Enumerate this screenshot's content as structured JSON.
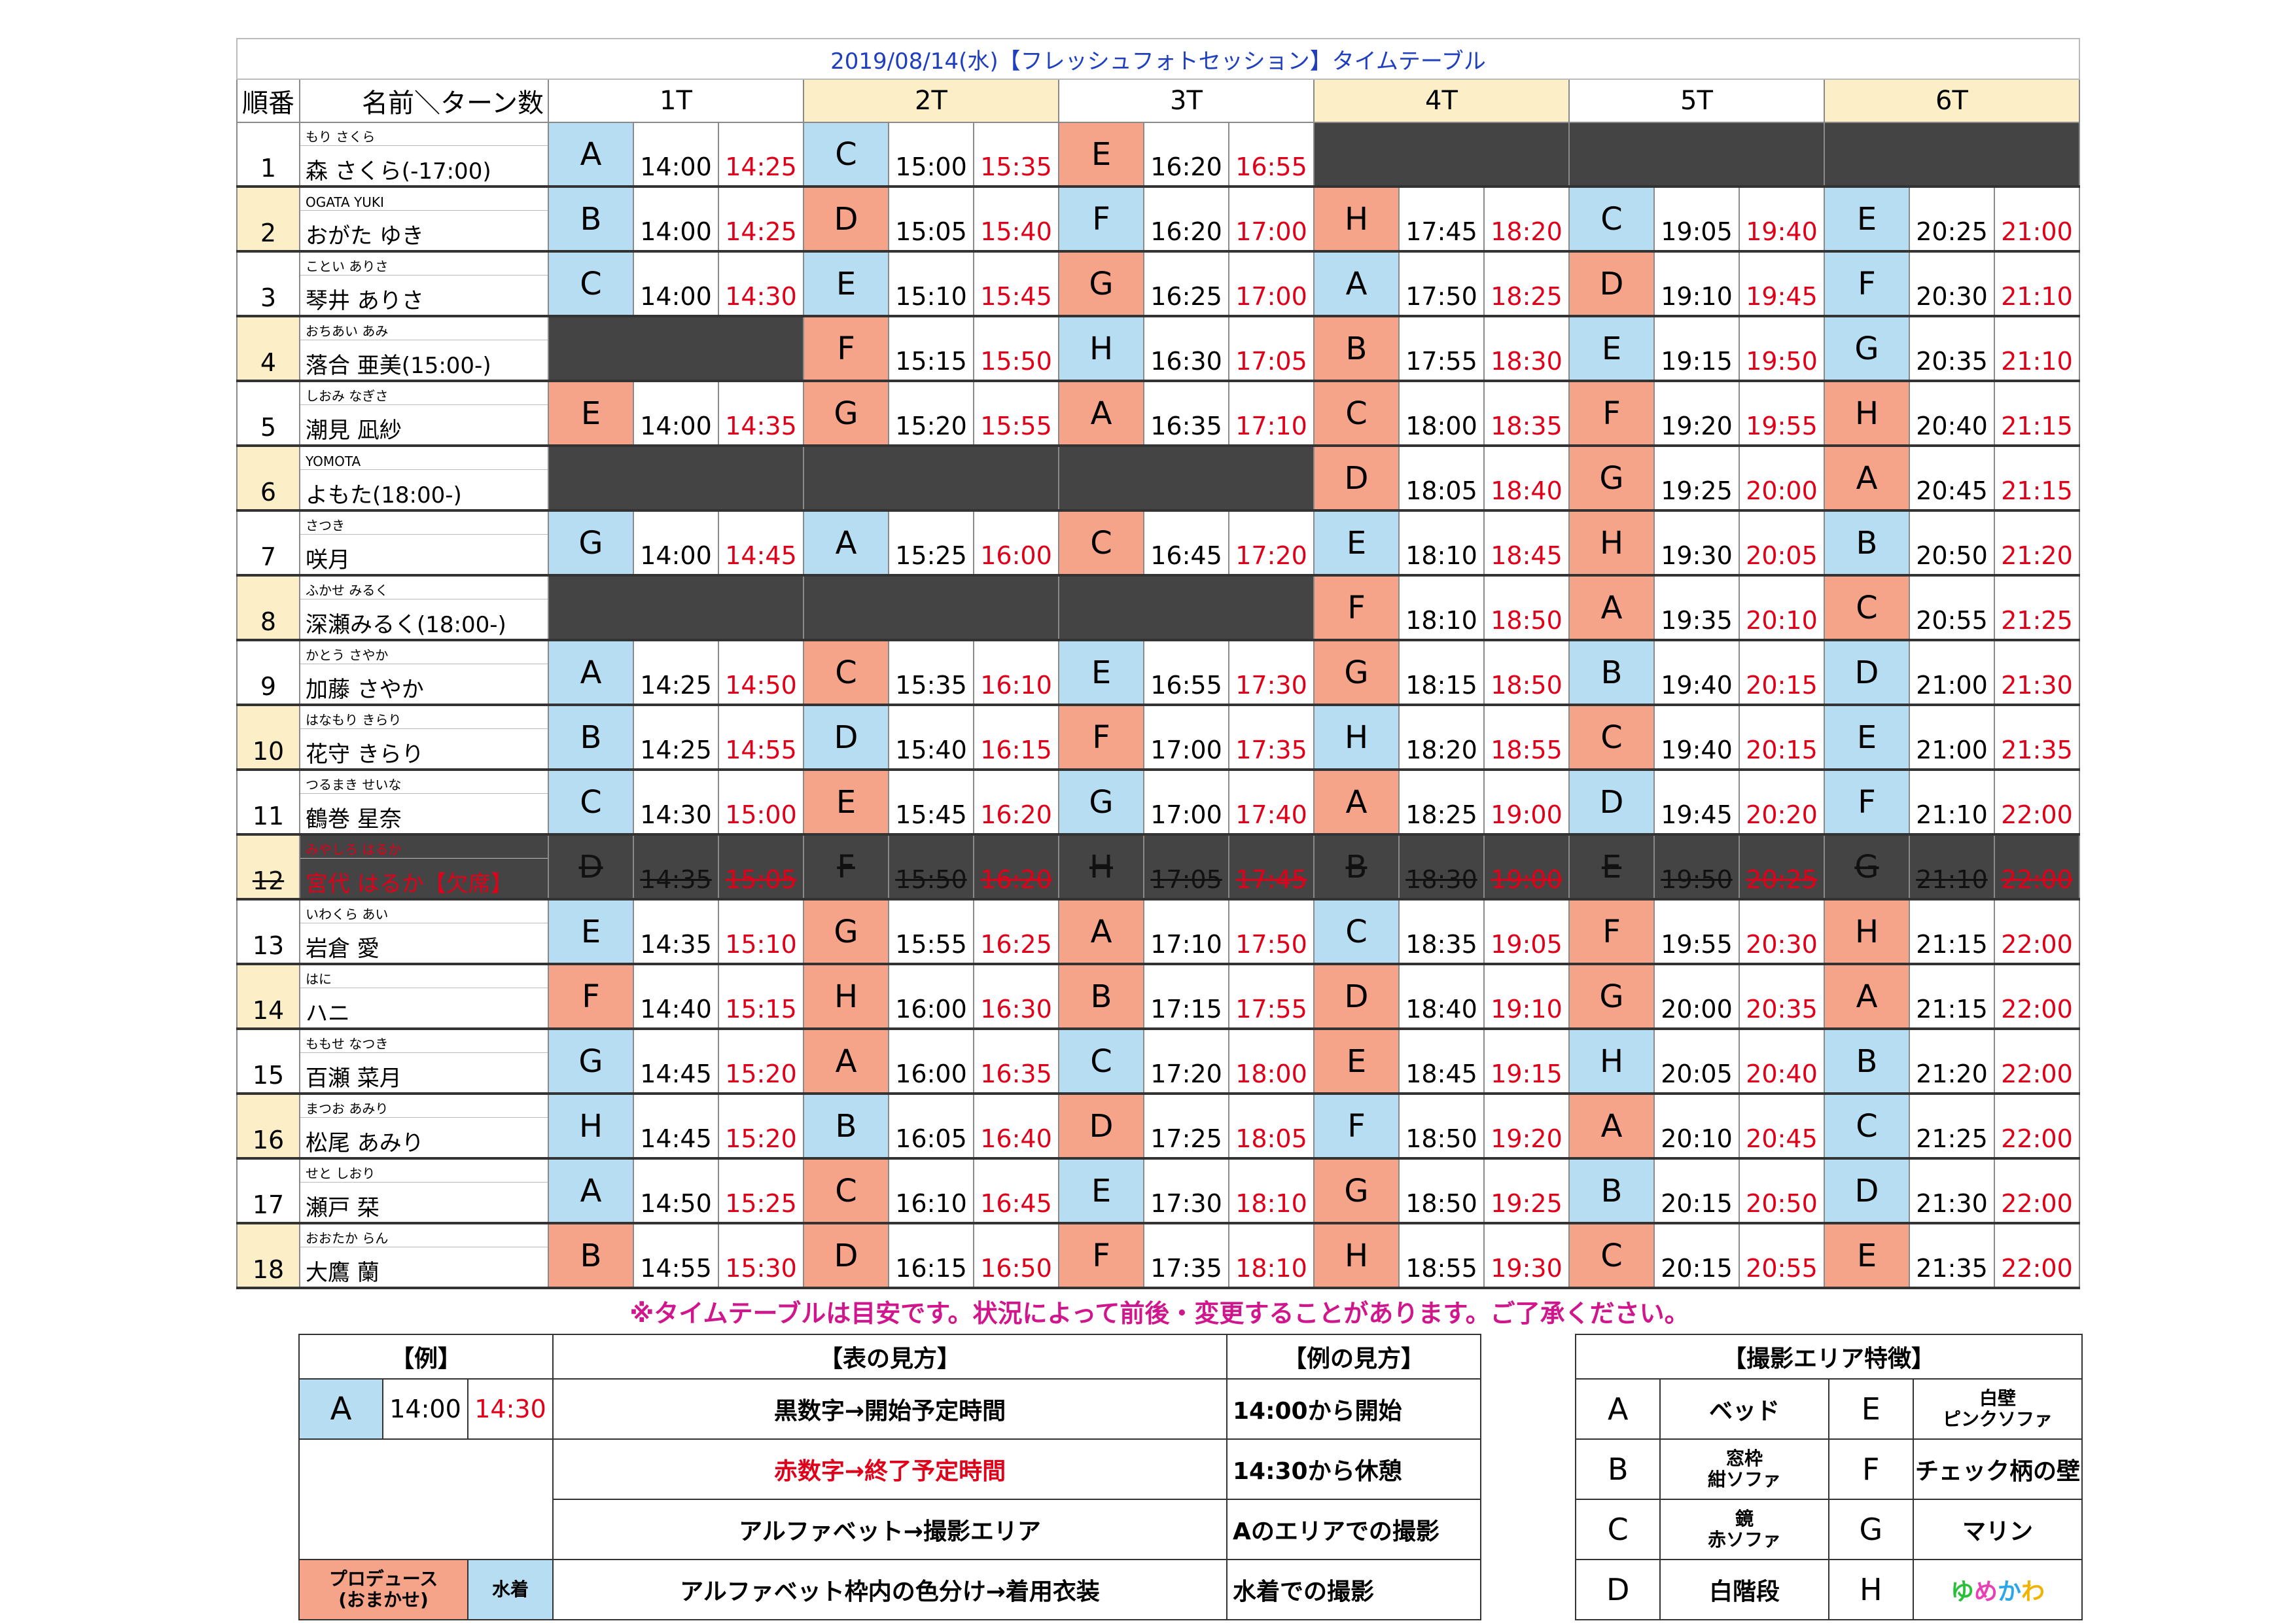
{
  "title": "2019/08/14(水)【フレッシュフォトセッション】タイムテーブル",
  "headers": {
    "order": "順番",
    "name_turns": "名前＼ターン数",
    "turns": [
      "1T",
      "2T",
      "3T",
      "4T",
      "5T",
      "6T"
    ]
  },
  "rows": [
    {
      "no": "1",
      "furigana": "もり さくら",
      "name": "森 さくら(-17:00)",
      "cells": [
        {
          "a": "A",
          "c": "b",
          "s": "14:00",
          "e": "14:25"
        },
        {
          "a": "C",
          "c": "b",
          "s": "15:00",
          "e": "15:35"
        },
        {
          "a": "E",
          "c": "r",
          "s": "16:20",
          "e": "16:55"
        },
        null,
        null,
        null
      ]
    },
    {
      "no": "2",
      "furigana": "OGATA YUKI",
      "name": "おがた ゆき",
      "cells": [
        {
          "a": "B",
          "c": "b",
          "s": "14:00",
          "e": "14:25"
        },
        {
          "a": "D",
          "c": "r",
          "s": "15:05",
          "e": "15:40"
        },
        {
          "a": "F",
          "c": "b",
          "s": "16:20",
          "e": "17:00"
        },
        {
          "a": "H",
          "c": "r",
          "s": "17:45",
          "e": "18:20"
        },
        {
          "a": "C",
          "c": "b",
          "s": "19:05",
          "e": "19:40"
        },
        {
          "a": "E",
          "c": "b",
          "s": "20:25",
          "e": "21:00"
        }
      ]
    },
    {
      "no": "3",
      "furigana": "ことい ありさ",
      "name": "琴井 ありさ",
      "cells": [
        {
          "a": "C",
          "c": "b",
          "s": "14:00",
          "e": "14:30"
        },
        {
          "a": "E",
          "c": "b",
          "s": "15:10",
          "e": "15:45"
        },
        {
          "a": "G",
          "c": "r",
          "s": "16:25",
          "e": "17:00"
        },
        {
          "a": "A",
          "c": "b",
          "s": "17:50",
          "e": "18:25"
        },
        {
          "a": "D",
          "c": "r",
          "s": "19:10",
          "e": "19:45"
        },
        {
          "a": "F",
          "c": "b",
          "s": "20:30",
          "e": "21:10"
        }
      ]
    },
    {
      "no": "4",
      "furigana": "おちあい あみ",
      "name": "落合 亜美(15:00-)",
      "cells": [
        null,
        {
          "a": "F",
          "c": "r",
          "s": "15:15",
          "e": "15:50"
        },
        {
          "a": "H",
          "c": "b",
          "s": "16:30",
          "e": "17:05"
        },
        {
          "a": "B",
          "c": "r",
          "s": "17:55",
          "e": "18:30"
        },
        {
          "a": "E",
          "c": "b",
          "s": "19:15",
          "e": "19:50"
        },
        {
          "a": "G",
          "c": "b",
          "s": "20:35",
          "e": "21:10"
        }
      ]
    },
    {
      "no": "5",
      "furigana": "しおみ なぎさ",
      "name": "潮見 凪紗",
      "cells": [
        {
          "a": "E",
          "c": "r",
          "s": "14:00",
          "e": "14:35"
        },
        {
          "a": "G",
          "c": "r",
          "s": "15:20",
          "e": "15:55"
        },
        {
          "a": "A",
          "c": "r",
          "s": "16:35",
          "e": "17:10"
        },
        {
          "a": "C",
          "c": "r",
          "s": "18:00",
          "e": "18:35"
        },
        {
          "a": "F",
          "c": "r",
          "s": "19:20",
          "e": "19:55"
        },
        {
          "a": "H",
          "c": "r",
          "s": "20:40",
          "e": "21:15"
        }
      ]
    },
    {
      "no": "6",
      "furigana": "YOMOTA",
      "name": "よもた(18:00-)",
      "cells": [
        null,
        null,
        null,
        {
          "a": "D",
          "c": "r",
          "s": "18:05",
          "e": "18:40"
        },
        {
          "a": "G",
          "c": "r",
          "s": "19:25",
          "e": "20:00"
        },
        {
          "a": "A",
          "c": "r",
          "s": "20:45",
          "e": "21:15"
        }
      ]
    },
    {
      "no": "7",
      "furigana": "さつき",
      "name": "咲月",
      "cells": [
        {
          "a": "G",
          "c": "b",
          "s": "14:00",
          "e": "14:45"
        },
        {
          "a": "A",
          "c": "b",
          "s": "15:25",
          "e": "16:00"
        },
        {
          "a": "C",
          "c": "r",
          "s": "16:45",
          "e": "17:20"
        },
        {
          "a": "E",
          "c": "b",
          "s": "18:10",
          "e": "18:45"
        },
        {
          "a": "H",
          "c": "r",
          "s": "19:30",
          "e": "20:05"
        },
        {
          "a": "B",
          "c": "b",
          "s": "20:50",
          "e": "21:20"
        }
      ]
    },
    {
      "no": "8",
      "furigana": "ふかせ みるく",
      "name": "深瀬みるく(18:00-)",
      "cells": [
        null,
        null,
        null,
        {
          "a": "F",
          "c": "r",
          "s": "18:10",
          "e": "18:50"
        },
        {
          "a": "A",
          "c": "r",
          "s": "19:35",
          "e": "20:10"
        },
        {
          "a": "C",
          "c": "r",
          "s": "20:55",
          "e": "21:25"
        }
      ]
    },
    {
      "no": "9",
      "furigana": "かとう さやか",
      "name": "加藤 さやか",
      "cells": [
        {
          "a": "A",
          "c": "b",
          "s": "14:25",
          "e": "14:50"
        },
        {
          "a": "C",
          "c": "r",
          "s": "15:35",
          "e": "16:10"
        },
        {
          "a": "E",
          "c": "b",
          "s": "16:55",
          "e": "17:30"
        },
        {
          "a": "G",
          "c": "r",
          "s": "18:15",
          "e": "18:50"
        },
        {
          "a": "B",
          "c": "b",
          "s": "19:40",
          "e": "20:15"
        },
        {
          "a": "D",
          "c": "b",
          "s": "21:00",
          "e": "21:30"
        }
      ]
    },
    {
      "no": "10",
      "furigana": "はなもり きらり",
      "name": "花守 きらり",
      "cells": [
        {
          "a": "B",
          "c": "b",
          "s": "14:25",
          "e": "14:55"
        },
        {
          "a": "D",
          "c": "b",
          "s": "15:40",
          "e": "16:15"
        },
        {
          "a": "F",
          "c": "r",
          "s": "17:00",
          "e": "17:35"
        },
        {
          "a": "H",
          "c": "b",
          "s": "18:20",
          "e": "18:55"
        },
        {
          "a": "C",
          "c": "r",
          "s": "19:40",
          "e": "20:15"
        },
        {
          "a": "E",
          "c": "b",
          "s": "21:00",
          "e": "21:35"
        }
      ]
    },
    {
      "no": "11",
      "furigana": "つるまき せいな",
      "name": "鶴巻 星奈",
      "cells": [
        {
          "a": "C",
          "c": "b",
          "s": "14:30",
          "e": "15:00"
        },
        {
          "a": "E",
          "c": "r",
          "s": "15:45",
          "e": "16:20"
        },
        {
          "a": "G",
          "c": "b",
          "s": "17:00",
          "e": "17:40"
        },
        {
          "a": "A",
          "c": "r",
          "s": "18:25",
          "e": "19:00"
        },
        {
          "a": "D",
          "c": "b",
          "s": "19:45",
          "e": "20:20"
        },
        {
          "a": "F",
          "c": "b",
          "s": "21:10",
          "e": "22:00"
        }
      ]
    },
    {
      "no": "12",
      "furigana": "みやしろ はるか",
      "name": "宮代 はるか【欠席】",
      "absent": true,
      "cells": [
        {
          "a": "D",
          "c": "x",
          "s": "14:35",
          "e": "15:05"
        },
        {
          "a": "F",
          "c": "x",
          "s": "15:50",
          "e": "16:20"
        },
        {
          "a": "H",
          "c": "x",
          "s": "17:05",
          "e": "17:45"
        },
        {
          "a": "B",
          "c": "x",
          "s": "18:30",
          "e": "19:00"
        },
        {
          "a": "E",
          "c": "x",
          "s": "19:50",
          "e": "20:25"
        },
        {
          "a": "G",
          "c": "x",
          "s": "21:10",
          "e": "22:00"
        }
      ]
    },
    {
      "no": "13",
      "furigana": "いわくら あい",
      "name": "岩倉 愛",
      "cells": [
        {
          "a": "E",
          "c": "b",
          "s": "14:35",
          "e": "15:10"
        },
        {
          "a": "G",
          "c": "r",
          "s": "15:55",
          "e": "16:25"
        },
        {
          "a": "A",
          "c": "r",
          "s": "17:10",
          "e": "17:50"
        },
        {
          "a": "C",
          "c": "b",
          "s": "18:35",
          "e": "19:05"
        },
        {
          "a": "F",
          "c": "r",
          "s": "19:55",
          "e": "20:30"
        },
        {
          "a": "H",
          "c": "r",
          "s": "21:15",
          "e": "22:00"
        }
      ]
    },
    {
      "no": "14",
      "furigana": "はに",
      "name": "ハニ",
      "cells": [
        {
          "a": "F",
          "c": "r",
          "s": "14:40",
          "e": "15:15"
        },
        {
          "a": "H",
          "c": "r",
          "s": "16:00",
          "e": "16:30"
        },
        {
          "a": "B",
          "c": "r",
          "s": "17:15",
          "e": "17:55"
        },
        {
          "a": "D",
          "c": "r",
          "s": "18:40",
          "e": "19:10"
        },
        {
          "a": "G",
          "c": "r",
          "s": "20:00",
          "e": "20:35"
        },
        {
          "a": "A",
          "c": "r",
          "s": "21:15",
          "e": "22:00"
        }
      ]
    },
    {
      "no": "15",
      "furigana": "ももせ なつき",
      "name": "百瀬 菜月",
      "cells": [
        {
          "a": "G",
          "c": "b",
          "s": "14:45",
          "e": "15:20"
        },
        {
          "a": "A",
          "c": "r",
          "s": "16:00",
          "e": "16:35"
        },
        {
          "a": "C",
          "c": "b",
          "s": "17:20",
          "e": "18:00"
        },
        {
          "a": "E",
          "c": "r",
          "s": "18:45",
          "e": "19:15"
        },
        {
          "a": "H",
          "c": "b",
          "s": "20:05",
          "e": "20:40"
        },
        {
          "a": "B",
          "c": "b",
          "s": "21:20",
          "e": "22:00"
        }
      ]
    },
    {
      "no": "16",
      "furigana": "まつお あみり",
      "name": "松尾 あみり",
      "cells": [
        {
          "a": "H",
          "c": "b",
          "s": "14:45",
          "e": "15:20"
        },
        {
          "a": "B",
          "c": "b",
          "s": "16:05",
          "e": "16:40"
        },
        {
          "a": "D",
          "c": "r",
          "s": "17:25",
          "e": "18:05"
        },
        {
          "a": "F",
          "c": "b",
          "s": "18:50",
          "e": "19:20"
        },
        {
          "a": "A",
          "c": "r",
          "s": "20:10",
          "e": "20:45"
        },
        {
          "a": "C",
          "c": "b",
          "s": "21:25",
          "e": "22:00"
        }
      ]
    },
    {
      "no": "17",
      "furigana": "せと しおり",
      "name": "瀬戸 栞",
      "cells": [
        {
          "a": "A",
          "c": "b",
          "s": "14:50",
          "e": "15:25"
        },
        {
          "a": "C",
          "c": "r",
          "s": "16:10",
          "e": "16:45"
        },
        {
          "a": "E",
          "c": "b",
          "s": "17:30",
          "e": "18:10"
        },
        {
          "a": "G",
          "c": "r",
          "s": "18:50",
          "e": "19:25"
        },
        {
          "a": "B",
          "c": "b",
          "s": "20:15",
          "e": "20:50"
        },
        {
          "a": "D",
          "c": "b",
          "s": "21:30",
          "e": "22:00"
        }
      ]
    },
    {
      "no": "18",
      "furigana": "おおたか らん",
      "name": "大鷹 蘭",
      "cells": [
        {
          "a": "B",
          "c": "r",
          "s": "14:55",
          "e": "15:30"
        },
        {
          "a": "D",
          "c": "r",
          "s": "16:15",
          "e": "16:50"
        },
        {
          "a": "F",
          "c": "r",
          "s": "17:35",
          "e": "18:10"
        },
        {
          "a": "H",
          "c": "r",
          "s": "18:55",
          "e": "19:30"
        },
        {
          "a": "C",
          "c": "r",
          "s": "20:15",
          "e": "20:55"
        },
        {
          "a": "E",
          "c": "r",
          "s": "21:35",
          "e": "22:00"
        }
      ]
    }
  ],
  "notice": "※タイムテーブルは目安です。状況によって前後・変更することがあります。ご了承ください。",
  "legend": {
    "example_header": "【例】",
    "how_to_read_header": "【表の見方】",
    "example_read_header": "【例の見方】",
    "example": {
      "area": "A",
      "start": "14:00",
      "end": "14:30"
    },
    "rules": [
      {
        "text": "黒数字→開始予定時間",
        "example": "14:00から開始"
      },
      {
        "text": "赤数字→終了予定時間",
        "example": "14:30から休憩"
      },
      {
        "text": "アルファベット→撮影エリア",
        "example": "Aのエリアでの撮影"
      },
      {
        "text": "アルファベット枠内の色分け→着用衣装",
        "example": "水着での撮影"
      }
    ],
    "produce_label": "プロデュース\n(おまかせ)",
    "swimsuit_label": "水着"
  },
  "areas": {
    "header": "【撮影エリア特徴】",
    "items": [
      {
        "left": "A",
        "left_desc": "ベッド",
        "right": "E",
        "right_desc": "白壁\nピンクソファ"
      },
      {
        "left": "B",
        "left_desc": "窓枠\n紺ソファ",
        "right": "F",
        "right_desc": "チェック柄の壁"
      },
      {
        "left": "C",
        "left_desc": "鏡\n赤ソファ",
        "right": "G",
        "right_desc": "マリン"
      },
      {
        "left": "D",
        "left_desc": "白階段",
        "right": "H",
        "right_desc": "ゆめかわ"
      }
    ]
  },
  "colors": {
    "blue": "#b7ddf3",
    "red": "#f5a48a",
    "alt_row": "#fcefc8",
    "off": "#444444",
    "end_time": "#e0001a"
  }
}
